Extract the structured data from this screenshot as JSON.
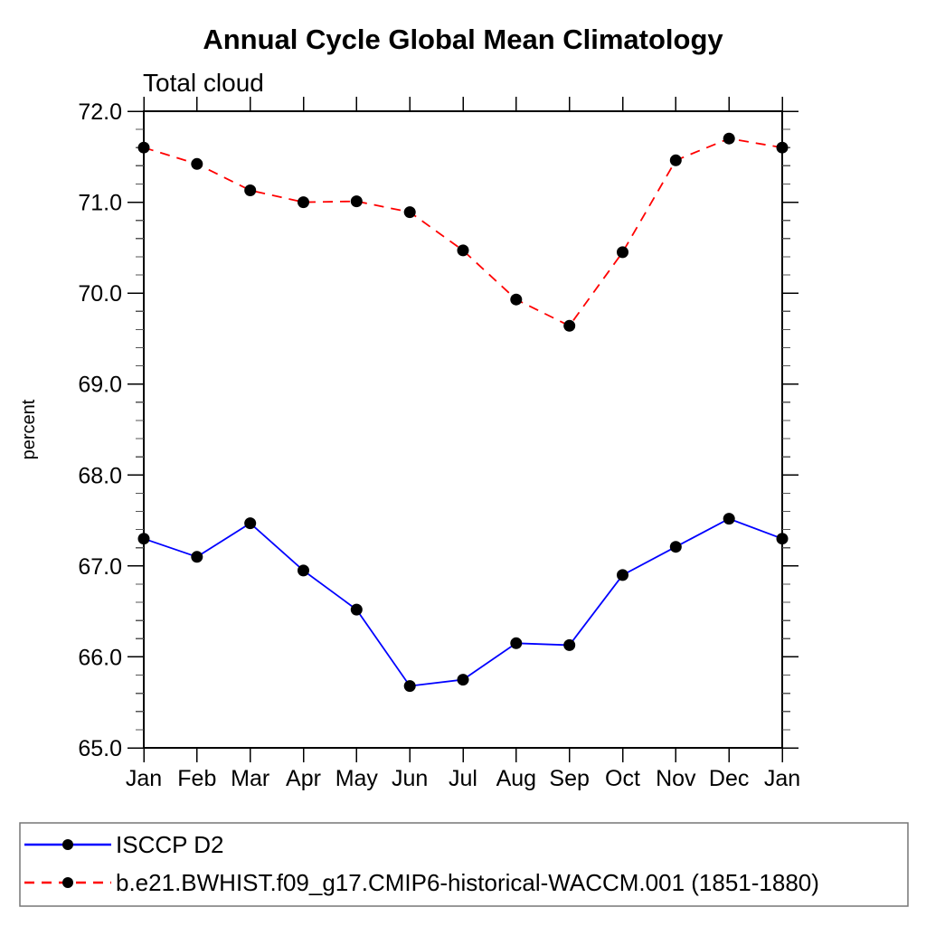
{
  "page": {
    "background_color": "#ffffff",
    "frame_color": "#000000"
  },
  "header": {
    "title": "Annual Cycle Global Mean Climatology",
    "subtitle": "Total cloud"
  },
  "chart_data": {
    "type": "line",
    "title": "Annual Cycle Global Mean Climatology",
    "subtitle": "Total cloud",
    "xlabel": "",
    "ylabel": "percent",
    "categories": [
      "Jan",
      "Feb",
      "Mar",
      "Apr",
      "May",
      "Jun",
      "Jul",
      "Aug",
      "Sep",
      "Oct",
      "Nov",
      "Dec",
      "Jan"
    ],
    "ylim": [
      65.0,
      72.0
    ],
    "ytick_interval": 1.0,
    "yminor_interval": 0.2,
    "ytick_labels": [
      "65.0",
      "66.0",
      "67.0",
      "68.0",
      "69.0",
      "70.0",
      "71.0",
      "72.0"
    ],
    "grid": false,
    "legend_position": "bottom",
    "series": [
      {
        "name": "ISCCP D2",
        "color": "#0000ff",
        "line_style": "solid",
        "marker": "circle",
        "marker_color": "#000000",
        "values": [
          67.3,
          67.1,
          67.47,
          66.95,
          66.52,
          65.68,
          65.75,
          66.15,
          66.13,
          66.9,
          67.21,
          67.52,
          67.3
        ]
      },
      {
        "name": "b.e21.BWHIST.f09_g17.CMIP6-historical-WACCM.001 (1851-1880)",
        "color": "#ff0000",
        "line_style": "dashed",
        "marker": "circle",
        "marker_color": "#000000",
        "values": [
          71.6,
          71.42,
          71.13,
          71.0,
          71.01,
          70.89,
          70.47,
          69.93,
          69.64,
          70.45,
          71.46,
          71.7,
          71.6
        ]
      }
    ]
  }
}
